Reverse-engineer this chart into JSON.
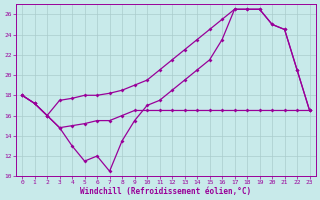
{
  "xlabel": "Windchill (Refroidissement éolien,°C)",
  "background_color": "#c8eaea",
  "grid_color": "#aacccc",
  "line_color": "#990099",
  "xlim": [
    -0.5,
    23.5
  ],
  "ylim": [
    10,
    27
  ],
  "yticks": [
    10,
    12,
    14,
    16,
    18,
    20,
    22,
    24,
    26
  ],
  "xticks": [
    0,
    1,
    2,
    3,
    4,
    5,
    6,
    7,
    8,
    9,
    10,
    11,
    12,
    13,
    14,
    15,
    16,
    17,
    18,
    19,
    20,
    21,
    22,
    23
  ],
  "series1_x": [
    0,
    1,
    2,
    3,
    4,
    5,
    6,
    7,
    8,
    9,
    10,
    11,
    12,
    13,
    14,
    15,
    16,
    17,
    18,
    19,
    20,
    21,
    22,
    23
  ],
  "series1_y": [
    18.0,
    17.2,
    16.0,
    17.5,
    17.7,
    18.0,
    18.0,
    18.2,
    18.5,
    19.0,
    19.5,
    20.5,
    21.5,
    22.5,
    23.5,
    24.5,
    25.5,
    26.5,
    26.5,
    26.5,
    25.0,
    24.5,
    20.5,
    16.5
  ],
  "series2_x": [
    0,
    1,
    2,
    3,
    4,
    5,
    6,
    7,
    8,
    9,
    10,
    11,
    12,
    13,
    14,
    15,
    16,
    17,
    18,
    19,
    20,
    21,
    22,
    23
  ],
  "series2_y": [
    18.0,
    17.2,
    16.0,
    14.8,
    13.0,
    11.5,
    12.0,
    10.5,
    13.5,
    15.5,
    17.0,
    17.5,
    18.5,
    19.5,
    20.5,
    21.5,
    23.5,
    26.5,
    26.5,
    26.5,
    25.0,
    24.5,
    20.5,
    16.5
  ],
  "series3_x": [
    0,
    1,
    2,
    3,
    4,
    5,
    6,
    7,
    8,
    9,
    10,
    11,
    12,
    13,
    14,
    15,
    16,
    17,
    18,
    19,
    20,
    21,
    22,
    23
  ],
  "series3_y": [
    18.0,
    17.2,
    16.0,
    14.8,
    15.0,
    15.2,
    15.5,
    15.5,
    16.0,
    16.5,
    16.5,
    16.5,
    16.5,
    16.5,
    16.5,
    16.5,
    16.5,
    16.5,
    16.5,
    16.5,
    16.5,
    16.5,
    16.5,
    16.5
  ]
}
